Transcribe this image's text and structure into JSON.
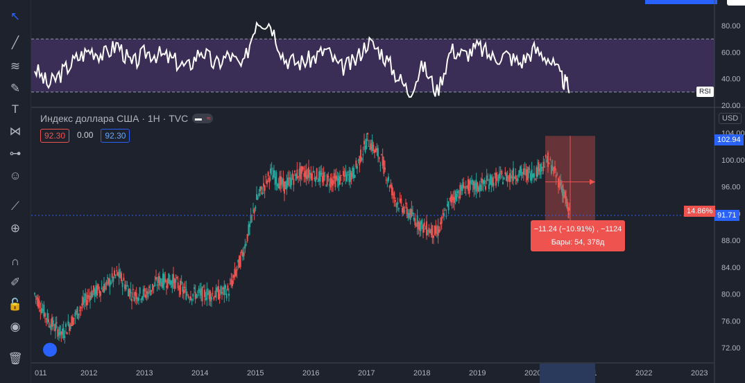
{
  "legend": {
    "title": "Индекс доллара США · 1Н · TVC",
    "open": "92.30",
    "change": "0.00",
    "close": "92.30"
  },
  "rsi": {
    "label": "RSI",
    "ticks": [
      "80.00",
      "60.00",
      "40.00",
      "20.00"
    ],
    "upper": 70,
    "lower": 30
  },
  "price_axis": {
    "currency": "USD",
    "last_price": "102.94",
    "current": "91.71",
    "pct": "14.86%"
  },
  "measure_tooltip": {
    "line1": "−11.24 (−10.91%) , −1124",
    "line2": "Бары: 54, 378д"
  },
  "colors": {
    "up": "#26a69a",
    "down": "#ef5350",
    "rsi_band": "#3a2d56",
    "rsi_line": "#ffffff",
    "measure": "#ef5350"
  },
  "toolbar_icons": [
    "cursor-icon",
    "trendline-icon",
    "fib-icon",
    "brush-icon",
    "text-icon",
    "pattern-icon",
    "prediction-icon",
    "emoji-icon",
    "ruler-icon",
    "zoom-icon",
    "magnet-icon",
    "lock-draw-icon",
    "lock-icon",
    "eye-icon",
    "trash-icon"
  ],
  "chart_data": [
    {
      "type": "line",
      "title": "RSI",
      "xlabel": "",
      "ylabel": "",
      "ylim": [
        20,
        90
      ],
      "x": [
        2011.0,
        2011.25,
        2011.5,
        2011.75,
        2012.0,
        2012.25,
        2012.5,
        2012.75,
        2013.0,
        2013.25,
        2013.5,
        2013.75,
        2014.0,
        2014.25,
        2014.5,
        2014.75,
        2015.0,
        2015.25,
        2015.5,
        2015.75,
        2016.0,
        2016.25,
        2016.5,
        2016.75,
        2017.0,
        2017.25,
        2017.5,
        2017.75,
        2018.0,
        2018.25,
        2018.5,
        2018.75,
        2019.0,
        2019.25,
        2019.5,
        2019.75,
        2020.0,
        2020.25,
        2020.5,
        2020.65
      ],
      "series": [
        {
          "values": [
            48,
            35,
            45,
            55,
            62,
            58,
            66,
            50,
            60,
            58,
            54,
            48,
            62,
            50,
            58,
            48,
            85,
            82,
            55,
            52,
            55,
            62,
            48,
            52,
            68,
            60,
            44,
            30,
            50,
            30,
            62,
            58,
            64,
            56,
            58,
            52,
            62,
            56,
            40,
            32
          ]
        }
      ]
    },
    {
      "type": "candlestick",
      "title": "Индекс доллара США",
      "xlabel": "",
      "ylabel": "",
      "ylim": [
        71,
        105
      ],
      "x_ticks": [
        "011",
        "2012",
        "2013",
        "2014",
        "2015",
        "2016",
        "2017",
        "2018",
        "2019",
        "2020",
        "2021",
        "2022",
        "2023"
      ],
      "y_ticks": [
        "104.00",
        "100.00",
        "96.00",
        "92.00",
        "88.00",
        "84.00",
        "80.00",
        "76.00",
        "72.00"
      ],
      "x": [
        2011.0,
        2011.25,
        2011.5,
        2011.75,
        2012.0,
        2012.25,
        2012.5,
        2012.75,
        2013.0,
        2013.25,
        2013.5,
        2013.75,
        2014.0,
        2014.25,
        2014.5,
        2014.75,
        2015.0,
        2015.25,
        2015.5,
        2015.75,
        2016.0,
        2016.25,
        2016.5,
        2016.75,
        2017.0,
        2017.25,
        2017.5,
        2017.75,
        2018.0,
        2018.25,
        2018.5,
        2018.75,
        2019.0,
        2019.25,
        2019.5,
        2019.75,
        2020.0,
        2020.25,
        2020.5,
        2020.65
      ],
      "series": [
        {
          "values": [
            80,
            76,
            74,
            77,
            80,
            81,
            83,
            80,
            80,
            82,
            82,
            80,
            80,
            80,
            80.5,
            86,
            94,
            98,
            96,
            98,
            98,
            97,
            97,
            98,
            103,
            100,
            94,
            92,
            90,
            89,
            94,
            96,
            96,
            97,
            97.5,
            98,
            98,
            100,
            96,
            91.5
          ]
        }
      ],
      "measure": {
        "from": [
          2020.2,
          102.94
        ],
        "to": [
          2020.7,
          91.71
        ]
      }
    }
  ]
}
